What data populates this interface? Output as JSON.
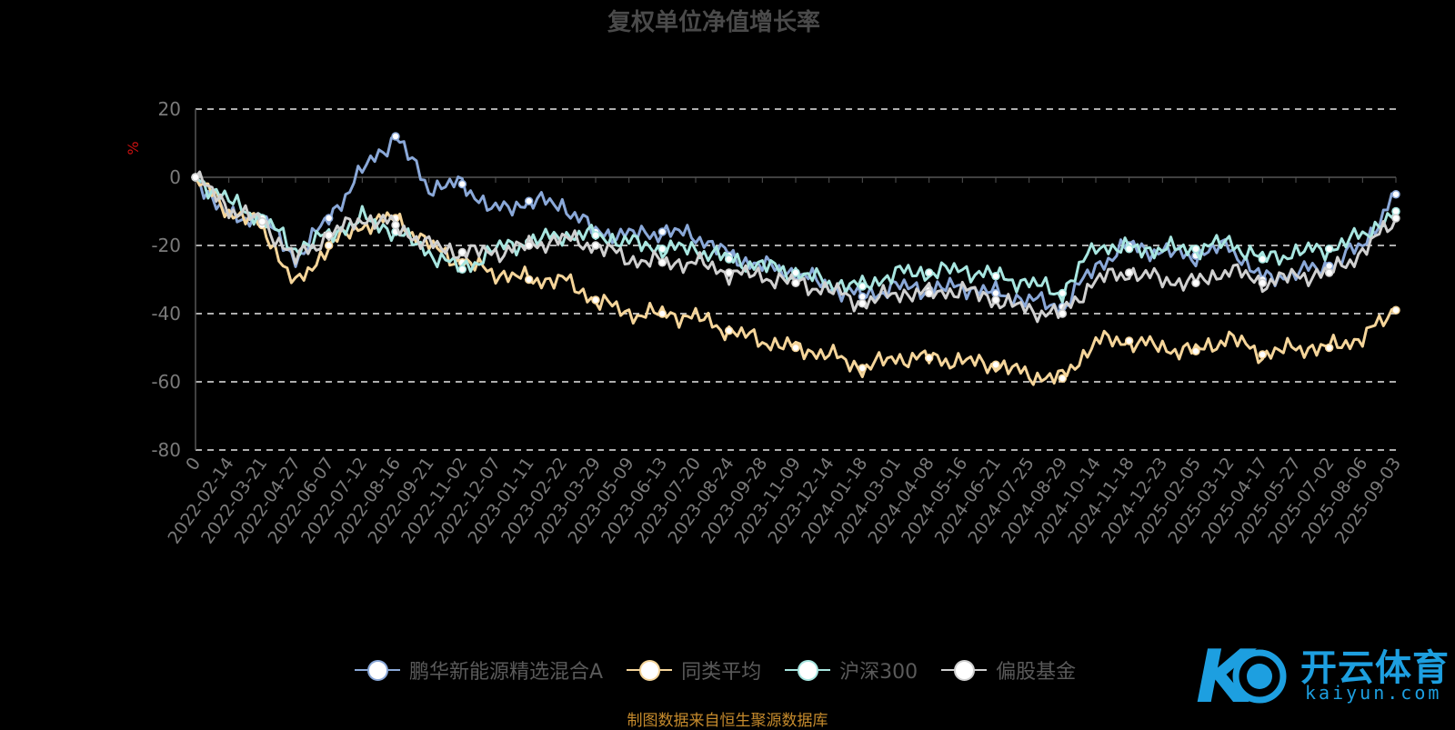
{
  "chart_data": {
    "type": "line",
    "title": "复权单位净值增长率",
    "ylabel": "%",
    "ylim": [
      -80,
      20
    ],
    "yticks": [
      20,
      0,
      -20,
      -40,
      -60,
      -80
    ],
    "grid": true,
    "legend_position": "bottom",
    "x": [
      "0",
      "2022-02-14",
      "2022-03-21",
      "2022-04-27",
      "2022-06-07",
      "2022-07-12",
      "2022-08-16",
      "2022-09-21",
      "2022-11-02",
      "2022-12-07",
      "2023-01-11",
      "2023-02-22",
      "2023-03-29",
      "2023-05-09",
      "2023-06-13",
      "2023-07-20",
      "2023-08-24",
      "2023-09-28",
      "2023-11-09",
      "2023-12-14",
      "2024-01-18",
      "2024-03-01",
      "2024-04-08",
      "2024-05-16",
      "2024-06-21",
      "2024-07-25",
      "2024-08-29",
      "2024-10-14",
      "2024-11-18",
      "2024-12-23",
      "2025-02-05",
      "2025-03-12",
      "2025-04-17",
      "2025-05-27",
      "2025-07-02",
      "2025-08-06",
      "2025-09-03"
    ],
    "series": [
      {
        "name": "鹏华新能源精选混合A",
        "color": "#8aa8d8",
        "values": [
          0,
          -12,
          -12,
          -24,
          -12,
          2,
          12,
          -3,
          -2,
          -10,
          -7,
          -8,
          -16,
          -17,
          -16,
          -17,
          -23,
          -26,
          -28,
          -32,
          -35,
          -32,
          -33,
          -32,
          -34,
          -36,
          -38,
          -26,
          -20,
          -22,
          -23,
          -20,
          -30,
          -28,
          -26,
          -20,
          -5
        ]
      },
      {
        "name": "同类平均",
        "color": "#f5d59a",
        "values": [
          0,
          -10,
          -14,
          -32,
          -20,
          -14,
          -12,
          -20,
          -25,
          -28,
          -30,
          -30,
          -36,
          -40,
          -40,
          -41,
          -45,
          -48,
          -50,
          -52,
          -56,
          -53,
          -53,
          -54,
          -55,
          -58,
          -59,
          -48,
          -48,
          -50,
          -51,
          -47,
          -52,
          -50,
          -50,
          -47,
          -39
        ]
      },
      {
        "name": "沪深300",
        "color": "#a8e6e0",
        "values": [
          0,
          -7,
          -12,
          -21,
          -17,
          -12,
          -16,
          -22,
          -27,
          -21,
          -19,
          -17,
          -17,
          -19,
          -21,
          -21,
          -24,
          -26,
          -28,
          -31,
          -32,
          -28,
          -28,
          -27,
          -29,
          -31,
          -34,
          -20,
          -21,
          -21,
          -21,
          -19,
          -24,
          -22,
          -21,
          -17,
          -10
        ]
      },
      {
        "name": "偏股基金",
        "color": "#d0d0d0",
        "values": [
          0,
          -9,
          -13,
          -24,
          -17,
          -12,
          -14,
          -20,
          -22,
          -22,
          -20,
          -18,
          -20,
          -24,
          -25,
          -25,
          -28,
          -29,
          -31,
          -33,
          -37,
          -34,
          -34,
          -33,
          -36,
          -39,
          -40,
          -30,
          -28,
          -30,
          -31,
          -27,
          -31,
          -29,
          -28,
          -22,
          -12
        ]
      }
    ]
  },
  "legend": [
    "鹏华新能源精选混合A",
    "同类平均",
    "沪深300",
    "偏股基金"
  ],
  "source_note": "制图数据来自恒生聚源数据库",
  "brand": {
    "name": "开云体育",
    "sub": "kaiyun.com"
  }
}
